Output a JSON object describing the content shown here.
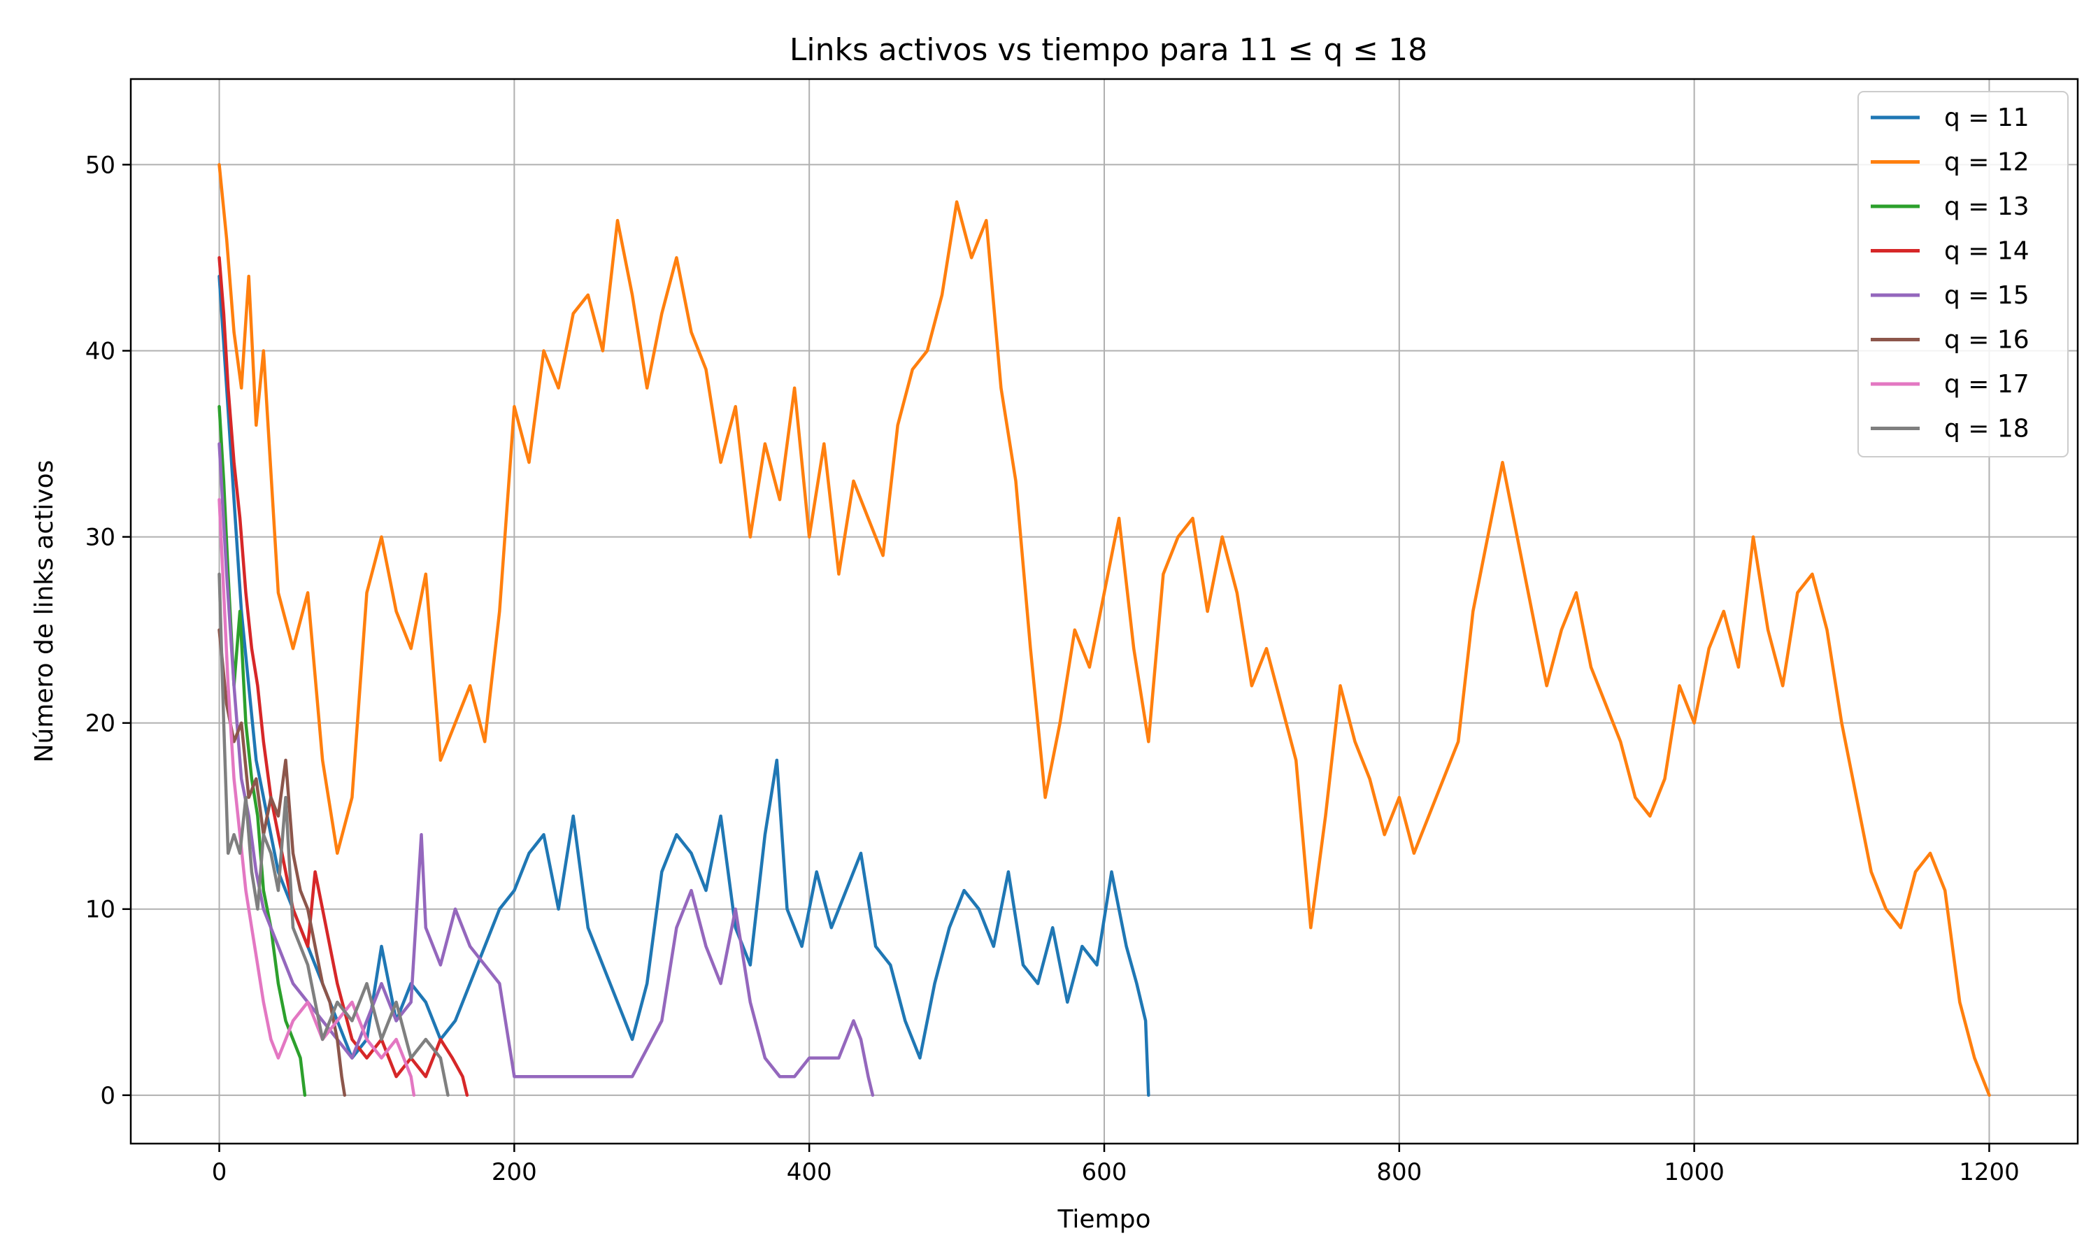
{
  "chart_data": {
    "type": "line",
    "title": "Links activos vs tiempo para 11 ≤ q ≤ 18",
    "xlabel": "Tiempo",
    "ylabel": "Número de links activos",
    "xlim": [
      -60,
      1260
    ],
    "ylim": [
      -2.6,
      54.6
    ],
    "xticks": [
      0,
      200,
      400,
      600,
      800,
      1000,
      1200
    ],
    "xtick_labels": [
      "0",
      "200",
      "400",
      "600",
      "800",
      "1000",
      "1200"
    ],
    "yticks": [
      0,
      10,
      20,
      30,
      40,
      50
    ],
    "ytick_labels": [
      "0",
      "10",
      "20",
      "30",
      "40",
      "50"
    ],
    "grid": true,
    "legend_position": "top-right",
    "series": [
      {
        "name": "q = 11",
        "color": "#1f77b4",
        "x": [
          0,
          5,
          10,
          15,
          20,
          25,
          30,
          40,
          50,
          60,
          70,
          80,
          90,
          100,
          110,
          120,
          130,
          140,
          150,
          160,
          170,
          180,
          190,
          200,
          210,
          220,
          230,
          240,
          250,
          260,
          270,
          280,
          290,
          300,
          310,
          320,
          330,
          340,
          350,
          360,
          370,
          378,
          385,
          395,
          405,
          415,
          425,
          435,
          445,
          455,
          465,
          475,
          485,
          495,
          505,
          515,
          525,
          535,
          545,
          555,
          565,
          575,
          585,
          595,
          605,
          615,
          622,
          628,
          630
        ],
        "y": [
          44,
          38,
          32,
          26,
          22,
          18,
          16,
          12,
          10,
          8,
          6,
          4,
          2,
          3,
          8,
          4,
          6,
          5,
          3,
          4,
          6,
          8,
          10,
          11,
          13,
          14,
          10,
          15,
          9,
          7,
          5,
          3,
          6,
          12,
          14,
          13,
          11,
          15,
          9,
          7,
          14,
          18,
          10,
          8,
          12,
          9,
          11,
          13,
          8,
          7,
          4,
          2,
          6,
          9,
          11,
          10,
          8,
          12,
          7,
          6,
          9,
          5,
          8,
          7,
          12,
          8,
          6,
          4,
          0
        ]
      },
      {
        "name": "q = 12",
        "color": "#ff7f0e",
        "x": [
          0,
          5,
          10,
          15,
          20,
          25,
          30,
          40,
          50,
          60,
          70,
          80,
          90,
          100,
          110,
          120,
          130,
          140,
          150,
          160,
          170,
          180,
          190,
          200,
          210,
          220,
          230,
          240,
          250,
          260,
          270,
          280,
          290,
          300,
          310,
          320,
          330,
          340,
          350,
          360,
          370,
          380,
          390,
          400,
          410,
          420,
          430,
          440,
          450,
          460,
          470,
          480,
          490,
          500,
          510,
          520,
          530,
          540,
          550,
          560,
          570,
          580,
          590,
          600,
          610,
          620,
          630,
          640,
          650,
          660,
          670,
          680,
          690,
          700,
          710,
          720,
          730,
          740,
          750,
          760,
          770,
          780,
          790,
          800,
          810,
          820,
          830,
          840,
          850,
          860,
          870,
          880,
          890,
          900,
          910,
          920,
          930,
          940,
          950,
          960,
          970,
          980,
          990,
          1000,
          1010,
          1020,
          1030,
          1040,
          1050,
          1060,
          1070,
          1080,
          1090,
          1100,
          1110,
          1120,
          1130,
          1140,
          1150,
          1160,
          1170,
          1180,
          1190,
          1200
        ],
        "y": [
          50,
          46,
          41,
          38,
          44,
          36,
          40,
          27,
          24,
          27,
          18,
          13,
          16,
          27,
          30,
          26,
          24,
          28,
          18,
          20,
          22,
          19,
          26,
          37,
          34,
          40,
          38,
          42,
          43,
          40,
          47,
          43,
          38,
          42,
          45,
          41,
          39,
          34,
          37,
          30,
          35,
          32,
          38,
          30,
          35,
          28,
          33,
          31,
          29,
          36,
          39,
          40,
          43,
          48,
          45,
          47,
          38,
          33,
          24,
          16,
          20,
          25,
          23,
          27,
          31,
          24,
          19,
          28,
          30,
          31,
          26,
          30,
          27,
          22,
          24,
          21,
          18,
          9,
          15,
          22,
          19,
          17,
          14,
          16,
          13,
          15,
          17,
          19,
          26,
          30,
          34,
          30,
          26,
          22,
          25,
          27,
          23,
          21,
          19,
          16,
          15,
          17,
          22,
          20,
          24,
          26,
          23,
          30,
          25,
          22,
          27,
          28,
          25,
          20,
          16,
          12,
          10,
          9,
          12,
          13,
          11,
          5,
          2,
          0
        ]
      },
      {
        "name": "q = 13",
        "color": "#2ca02c",
        "x": [
          0,
          3,
          6,
          10,
          14,
          18,
          22,
          26,
          30,
          35,
          40,
          45,
          50,
          55,
          58
        ],
        "y": [
          37,
          33,
          28,
          22,
          26,
          20,
          17,
          15,
          11,
          9,
          6,
          4,
          3,
          2,
          0
        ]
      },
      {
        "name": "q = 14",
        "color": "#d62728",
        "x": [
          0,
          3,
          6,
          10,
          14,
          18,
          22,
          26,
          30,
          35,
          40,
          45,
          50,
          55,
          60,
          65,
          70,
          80,
          90,
          100,
          110,
          120,
          130,
          140,
          150,
          158,
          165,
          168
        ],
        "y": [
          45,
          42,
          38,
          34,
          31,
          27,
          24,
          22,
          19,
          16,
          14,
          12,
          10,
          9,
          8,
          12,
          10,
          6,
          3,
          2,
          3,
          1,
          2,
          1,
          3,
          2,
          1,
          0
        ]
      },
      {
        "name": "q = 15",
        "color": "#9467bd",
        "x": [
          0,
          5,
          10,
          15,
          20,
          25,
          30,
          40,
          50,
          60,
          70,
          80,
          90,
          100,
          110,
          120,
          130,
          137,
          140,
          150,
          160,
          170,
          180,
          190,
          200,
          220,
          240,
          260,
          280,
          300,
          310,
          320,
          330,
          340,
          350,
          360,
          370,
          380,
          390,
          400,
          410,
          420,
          430,
          435,
          440,
          443
        ],
        "y": [
          35,
          28,
          22,
          17,
          15,
          12,
          10,
          8,
          6,
          5,
          4,
          3,
          2,
          4,
          6,
          4,
          5,
          14,
          9,
          7,
          10,
          8,
          7,
          6,
          1,
          1,
          1,
          1,
          1,
          4,
          9,
          11,
          8,
          6,
          10,
          5,
          2,
          1,
          1,
          2,
          2,
          2,
          4,
          3,
          1,
          0
        ]
      },
      {
        "name": "q = 16",
        "color": "#8c564b",
        "x": [
          0,
          5,
          10,
          15,
          20,
          25,
          30,
          35,
          40,
          45,
          50,
          55,
          60,
          65,
          70,
          75,
          80,
          83,
          85
        ],
        "y": [
          25,
          21,
          19,
          20,
          16,
          17,
          14,
          16,
          15,
          18,
          13,
          11,
          10,
          8,
          6,
          5,
          3,
          1,
          0
        ]
      },
      {
        "name": "q = 17",
        "color": "#e377c2",
        "x": [
          0,
          3,
          6,
          10,
          14,
          18,
          22,
          26,
          30,
          35,
          40,
          45,
          50,
          60,
          70,
          80,
          90,
          100,
          110,
          120,
          125,
          130,
          132
        ],
        "y": [
          32,
          27,
          22,
          17,
          14,
          11,
          9,
          7,
          5,
          3,
          2,
          3,
          4,
          5,
          3,
          4,
          5,
          3,
          2,
          3,
          2,
          1,
          0
        ]
      },
      {
        "name": "q = 18",
        "color": "#7f7f7f",
        "x": [
          0,
          3,
          6,
          10,
          14,
          18,
          22,
          26,
          30,
          35,
          40,
          45,
          50,
          60,
          70,
          80,
          90,
          100,
          110,
          120,
          130,
          140,
          150,
          155
        ],
        "y": [
          28,
          20,
          13,
          14,
          13,
          16,
          12,
          10,
          14,
          13,
          11,
          16,
          9,
          7,
          3,
          5,
          4,
          6,
          3,
          5,
          2,
          3,
          2,
          0
        ]
      }
    ]
  }
}
